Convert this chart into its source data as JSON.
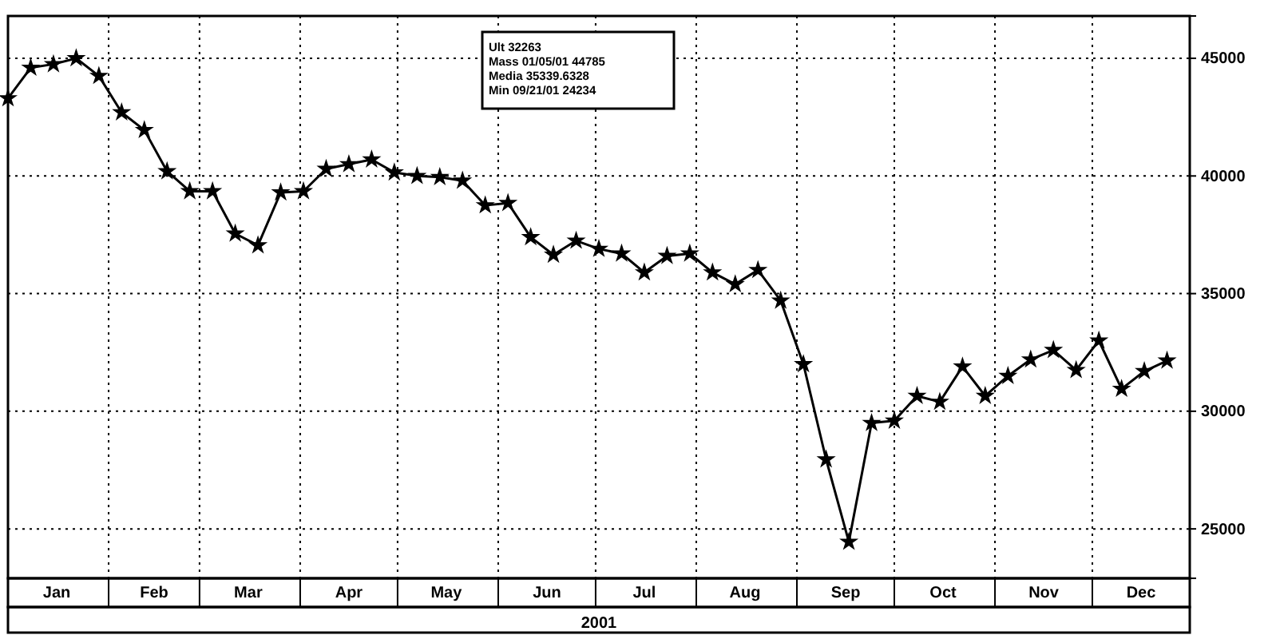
{
  "chart_data": {
    "type": "line",
    "xlabel": "2001",
    "x": [
      "2001-01-01",
      "2001-01-08",
      "2001-01-15",
      "2001-01-22",
      "2001-01-29",
      "2001-02-05",
      "2001-02-12",
      "2001-02-19",
      "2001-02-26",
      "2001-03-05",
      "2001-03-12",
      "2001-03-19",
      "2001-03-26",
      "2001-04-02",
      "2001-04-09",
      "2001-04-16",
      "2001-04-23",
      "2001-04-30",
      "2001-05-07",
      "2001-05-14",
      "2001-05-21",
      "2001-05-28",
      "2001-06-04",
      "2001-06-11",
      "2001-06-18",
      "2001-06-25",
      "2001-07-02",
      "2001-07-09",
      "2001-07-16",
      "2001-07-23",
      "2001-07-30",
      "2001-08-06",
      "2001-08-13",
      "2001-08-20",
      "2001-08-27",
      "2001-09-03",
      "2001-09-10",
      "2001-09-17",
      "2001-09-24",
      "2001-10-01",
      "2001-10-08",
      "2001-10-15",
      "2001-10-22",
      "2001-10-29",
      "2001-11-05",
      "2001-11-12",
      "2001-11-19",
      "2001-11-26",
      "2001-12-03",
      "2001-12-10",
      "2001-12-17",
      "2001-12-24"
    ],
    "series": [
      {
        "color": "#000000",
        "values": [
          43300,
          44600,
          44750,
          45000,
          44250,
          42700,
          41950,
          40200,
          39350,
          39350,
          37550,
          37050,
          39300,
          39350,
          40300,
          40500,
          40700,
          40150,
          40000,
          39950,
          39800,
          38750,
          38850,
          37400,
          36650,
          37250,
          36900,
          36700,
          35900,
          36600,
          36700,
          35900,
          35400,
          36000,
          34700,
          32000,
          27950,
          24450,
          29500,
          29600,
          30650,
          30400,
          31900,
          30650,
          31500,
          32200,
          32600,
          31750,
          33000,
          30950,
          31700,
          32150
        ]
      }
    ],
    "xlim": [
      "2001-01-01",
      "2001-12-31"
    ],
    "xticks": [
      {
        "value": "2001-01-01",
        "label": null
      },
      {
        "value": "2001-01-16",
        "label": "Jan"
      },
      {
        "value": "2001-02-01",
        "label": null
      },
      {
        "value": "2001-02-15",
        "label": "Feb"
      },
      {
        "value": "2001-03-01",
        "label": null
      },
      {
        "value": "2001-03-16",
        "label": "Mar"
      },
      {
        "value": "2001-04-01",
        "label": null
      },
      {
        "value": "2001-04-16",
        "label": "Apr"
      },
      {
        "value": "2001-05-01",
        "label": null
      },
      {
        "value": "2001-05-16",
        "label": "May"
      },
      {
        "value": "2001-06-01",
        "label": null
      },
      {
        "value": "2001-06-16",
        "label": "Jun"
      },
      {
        "value": "2001-07-01",
        "label": null
      },
      {
        "value": "2001-07-16",
        "label": "Jul"
      },
      {
        "value": "2001-08-01",
        "label": null
      },
      {
        "value": "2001-08-16",
        "label": "Aug"
      },
      {
        "value": "2001-09-01",
        "label": null
      },
      {
        "value": "2001-09-16",
        "label": "Sep"
      },
      {
        "value": "2001-10-01",
        "label": null
      },
      {
        "value": "2001-10-16",
        "label": "Oct"
      },
      {
        "value": "2001-11-01",
        "label": null
      },
      {
        "value": "2001-11-16",
        "label": "Nov"
      },
      {
        "value": "2001-12-01",
        "label": null
      },
      {
        "value": "2001-12-16",
        "label": "Dec"
      }
    ],
    "ylim": [
      22900,
      46800
    ],
    "yticks": [
      25000,
      30000,
      35000,
      40000,
      45000
    ],
    "grid": true,
    "marker": "star",
    "line_style": "solid",
    "annotations": [
      "Ult 32263",
      "Mass 01/05/01 44785",
      "Media 35339.6328",
      "Min 09/21/01 24234"
    ]
  }
}
